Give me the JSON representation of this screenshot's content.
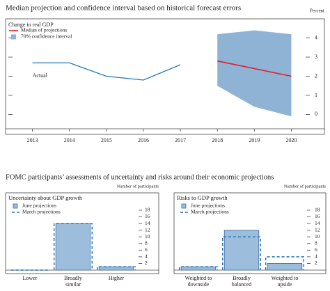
{
  "figure_title": "FOMC participants’ assessments of uncertainty and risks around their economic projections",
  "chart_data": [
    {
      "type": "line",
      "title": "Median projection and confidence interval based on historical forecast errors",
      "unit_label": "Percent",
      "subtitle": "Change in real GDP",
      "x": [
        2013,
        2014,
        2015,
        2016,
        2017,
        2018,
        2019,
        2020
      ],
      "xlim": [
        2012.5,
        2020.5
      ],
      "xticks": [
        2013,
        2014,
        2015,
        2016,
        2017,
        2018,
        2019,
        2020
      ],
      "ylim": [
        -0.75,
        4.75
      ],
      "yticks": [
        0,
        1,
        2,
        3,
        4
      ],
      "series": [
        {
          "name": "Actual",
          "color": "#1f78b4",
          "label_inline": true,
          "values": [
            2.7,
            2.7,
            2.0,
            1.8,
            2.6,
            null,
            null,
            null
          ]
        },
        {
          "name": "Median of projections",
          "color": "#e41a2a",
          "values": [
            null,
            null,
            null,
            null,
            null,
            2.8,
            2.4,
            2.0
          ]
        }
      ],
      "band": {
        "name": "70% confidence interval",
        "color": "#8fb3d5",
        "lower": [
          null,
          null,
          null,
          null,
          null,
          1.5,
          0.4,
          -0.1
        ],
        "upper": [
          null,
          null,
          null,
          null,
          null,
          4.2,
          4.4,
          4.2
        ]
      }
    },
    {
      "type": "bar",
      "title": "Uncertainty about GDP growth",
      "unit_label": "Number of participants",
      "categories": [
        [
          "Lower"
        ],
        [
          "Broadly",
          "similar"
        ],
        [
          "Higher"
        ]
      ],
      "ylim": [
        0,
        20
      ],
      "yticks": [
        2,
        4,
        6,
        8,
        10,
        12,
        14,
        16,
        18
      ],
      "series": [
        {
          "name": "June projections",
          "color": "#9dbddc",
          "edge_color": "#3d6c9e",
          "style": "bar",
          "values": [
            0,
            14,
            1
          ]
        },
        {
          "name": "March projections",
          "color": "#1f6fb8",
          "style": "dashed",
          "values": [
            0,
            14,
            1
          ]
        }
      ]
    },
    {
      "type": "bar",
      "title": "Risks to GDP growth",
      "unit_label": "Number of participants",
      "categories": [
        [
          "Weighted to",
          "downside"
        ],
        [
          "Broadly",
          "balanced"
        ],
        [
          "Weighted to",
          "upside"
        ]
      ],
      "ylim": [
        0,
        20
      ],
      "yticks": [
        2,
        4,
        6,
        8,
        10,
        12,
        14,
        16,
        18
      ],
      "series": [
        {
          "name": "June projections",
          "color": "#9dbddc",
          "edge_color": "#3d6c9e",
          "style": "bar",
          "values": [
            1,
            12,
            2
          ]
        },
        {
          "name": "March projections",
          "color": "#1f6fb8",
          "style": "dashed",
          "values": [
            1,
            10,
            4
          ]
        }
      ]
    }
  ]
}
